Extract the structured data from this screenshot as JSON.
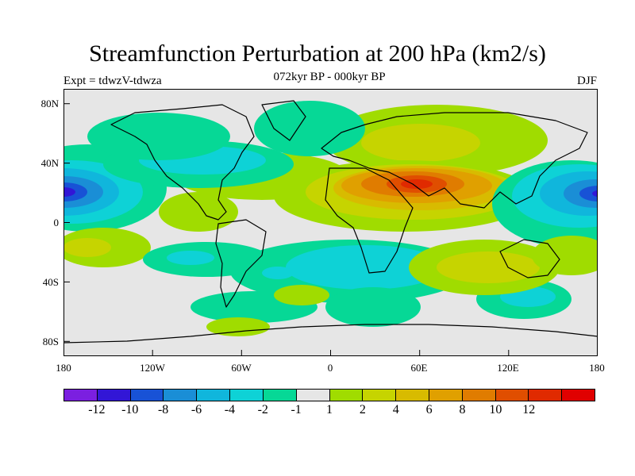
{
  "title": "Streamfunction Perturbation at 200 hPa (km2/s)",
  "subtitle": "072kyr BP - 000kyr BP",
  "experiment": "Expt = tdwzV-tdwza",
  "season": "DJF",
  "axes": {
    "lat_labels": [
      "80N",
      "40N",
      "0",
      "40S",
      "80S"
    ],
    "lon_labels": [
      "180",
      "120W",
      "60W",
      "0",
      "60E",
      "120E",
      "180"
    ]
  },
  "colorbar": {
    "colors": [
      "#7b1fe0",
      "#3216d6",
      "#1852d6",
      "#1a8ed6",
      "#10b6dc",
      "#0ed2d6",
      "#06d896",
      "#e6e6e6",
      "#a0dc00",
      "#c6d400",
      "#d8bb00",
      "#e0a000",
      "#e07c00",
      "#e04e00",
      "#e02a00",
      "#e00000"
    ],
    "labels": [
      "-12",
      "-10",
      "-8",
      "-6",
      "-4",
      "-2",
      "-1",
      "1",
      "2",
      "4",
      "6",
      "8",
      "10",
      "12"
    ]
  },
  "chart_data": {
    "type": "heatmap",
    "title": "Streamfunction Perturbation at 200 hPa (km2/s)",
    "subtitle": "072kyr BP - 000kyr BP",
    "experiment": "Expt = tdwzV-tdwza",
    "season": "DJF",
    "x_range": [
      -180,
      180
    ],
    "y_range": [
      -90,
      90
    ],
    "contour_levels": [
      -12,
      -10,
      -8,
      -6,
      -4,
      -2,
      -1,
      1,
      2,
      4,
      6,
      8,
      10,
      12
    ],
    "regions": [
      {
        "lon": 70,
        "lat": 25,
        "peak": 12,
        "description": "positive maximum over South Asia / Middle East"
      },
      {
        "lon": -170,
        "lat": 20,
        "peak": -10,
        "description": "negative centre over central North Pacific"
      },
      {
        "lon": 170,
        "lat": 20,
        "peak": -10,
        "description": "negative centre over western Pacific"
      },
      {
        "lon": 30,
        "lat": 60,
        "peak": 2,
        "description": "positive band over northern Eurasia"
      },
      {
        "lon": 100,
        "lat": -55,
        "peak": -4,
        "description": "negative centre over southern Indian Ocean"
      },
      {
        "lon": 0,
        "lat": -35,
        "peak": -4,
        "description": "negative band over South Atlantic / Africa"
      },
      {
        "lon": -120,
        "lat": -30,
        "peak": 2,
        "description": "positive centre over south-east Pacific"
      }
    ]
  }
}
